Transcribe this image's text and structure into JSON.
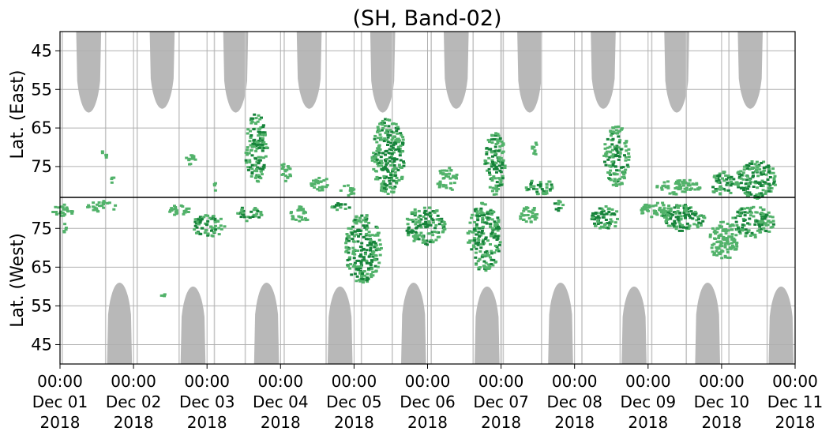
{
  "chart_data": {
    "type": "heatmap",
    "title": "(SH, Band-02)",
    "panels": [
      {
        "name": "east",
        "ylabel": "Lat. (East)",
        "yticks": [
          "45",
          "55",
          "65",
          "75"
        ],
        "ytick_values": [
          45,
          55,
          65,
          75
        ],
        "ylim": [
          40,
          83
        ]
      },
      {
        "name": "west",
        "ylabel": "Lat. (West)",
        "yticks": [
          "75",
          "65",
          "55",
          "45"
        ],
        "ytick_values": [
          75,
          65,
          55,
          45
        ],
        "ylim": [
          83,
          40
        ]
      }
    ],
    "x_ticks": [
      [
        "00:00",
        "Dec 01",
        "2018"
      ],
      [
        "00:00",
        "Dec 02",
        "2018"
      ],
      [
        "00:00",
        "Dec 03",
        "2018"
      ],
      [
        "00:00",
        "Dec 04",
        "2018"
      ],
      [
        "00:00",
        "Dec 05",
        "2018"
      ],
      [
        "00:00",
        "Dec 06",
        "2018"
      ],
      [
        "00:00",
        "Dec 07",
        "2018"
      ],
      [
        "00:00",
        "Dec 08",
        "2018"
      ],
      [
        "00:00",
        "Dec 09",
        "2018"
      ],
      [
        "00:00",
        "Dec 10",
        "2018"
      ],
      [
        "00:00",
        "Dec 11",
        "2018"
      ]
    ],
    "x_range": [
      "2018-12-01 00:00",
      "2018-12-11 00:00"
    ],
    "grid": true,
    "colors": {
      "daylight": "#b8b8b8",
      "echo_light": "#52b26a",
      "echo_dark": "#16833a",
      "grid": "#b0b0b0",
      "axis": "#000000"
    },
    "daylight_east": [
      {
        "day_start": 0.22,
        "day_end": 0.56,
        "min_lat": 61
      },
      {
        "day_start": 1.22,
        "day_end": 1.56,
        "min_lat": 60
      },
      {
        "day_start": 2.22,
        "day_end": 2.56,
        "min_lat": 61
      },
      {
        "day_start": 3.22,
        "day_end": 3.56,
        "min_lat": 60
      },
      {
        "day_start": 4.22,
        "day_end": 4.56,
        "min_lat": 61
      },
      {
        "day_start": 5.22,
        "day_end": 5.56,
        "min_lat": 60
      },
      {
        "day_start": 6.22,
        "day_end": 6.56,
        "min_lat": 61
      },
      {
        "day_start": 7.22,
        "day_end": 7.56,
        "min_lat": 60
      },
      {
        "day_start": 8.22,
        "day_end": 8.56,
        "min_lat": 61
      },
      {
        "day_start": 9.22,
        "day_end": 9.56,
        "min_lat": 60
      }
    ],
    "daylight_west": [
      {
        "day_start": 0.64,
        "day_end": 0.98,
        "min_lat": 61
      },
      {
        "day_start": 1.64,
        "day_end": 1.98,
        "min_lat": 60
      },
      {
        "day_start": 2.64,
        "day_end": 2.98,
        "min_lat": 61
      },
      {
        "day_start": 3.64,
        "day_end": 3.98,
        "min_lat": 60
      },
      {
        "day_start": 4.64,
        "day_end": 4.98,
        "min_lat": 61
      },
      {
        "day_start": 5.64,
        "day_end": 5.98,
        "min_lat": 60
      },
      {
        "day_start": 6.64,
        "day_end": 6.98,
        "min_lat": 61
      },
      {
        "day_start": 7.64,
        "day_end": 7.98,
        "min_lat": 60
      },
      {
        "day_start": 8.64,
        "day_end": 8.98,
        "min_lat": 61
      },
      {
        "day_start": 9.64,
        "day_end": 9.98,
        "min_lat": 60
      }
    ],
    "data_gaps": [
      0.03,
      0.62,
      1.05,
      1.62,
      2.1,
      2.52,
      3.05,
      3.62,
      4.1,
      4.52,
      5.05,
      5.62,
      6.0,
      6.03,
      6.55,
      7.1,
      7.62,
      8.05,
      8.52,
      9.1,
      9.62
    ],
    "echo_clusters": [
      {
        "panel": "east",
        "day": 0.55,
        "lat": 71,
        "w": 0.01,
        "h": 1,
        "level": 1
      },
      {
        "panel": "east",
        "day": 0.6,
        "lat": 72,
        "w": 0.01,
        "h": 1,
        "level": 1
      },
      {
        "panel": "east",
        "day": 0.7,
        "lat": 78,
        "w": 0.05,
        "h": 3,
        "level": 1
      },
      {
        "panel": "east",
        "day": 1.75,
        "lat": 73,
        "w": 0.15,
        "h": 3,
        "level": 1
      },
      {
        "panel": "east",
        "day": 2.1,
        "lat": 80,
        "w": 0.08,
        "h": 2,
        "level": 1
      },
      {
        "panel": "east",
        "day": 2.65,
        "lat": 70,
        "w": 0.3,
        "h": 18,
        "level": 2
      },
      {
        "panel": "east",
        "day": 3.05,
        "lat": 76,
        "w": 0.15,
        "h": 5,
        "level": 1
      },
      {
        "panel": "east",
        "day": 3.5,
        "lat": 79,
        "w": 0.25,
        "h": 4,
        "level": 1
      },
      {
        "panel": "east",
        "day": 3.9,
        "lat": 81,
        "w": 0.2,
        "h": 3,
        "level": 1
      },
      {
        "panel": "east",
        "day": 4.45,
        "lat": 72,
        "w": 0.45,
        "h": 20,
        "level": 2
      },
      {
        "panel": "east",
        "day": 5.25,
        "lat": 78,
        "w": 0.3,
        "h": 6,
        "level": 1
      },
      {
        "panel": "east",
        "day": 5.9,
        "lat": 74,
        "w": 0.3,
        "h": 16,
        "level": 2
      },
      {
        "panel": "east",
        "day": 6.45,
        "lat": 70,
        "w": 0.1,
        "h": 3,
        "level": 1
      },
      {
        "panel": "east",
        "day": 6.5,
        "lat": 80,
        "w": 0.4,
        "h": 4,
        "level": 2
      },
      {
        "panel": "east",
        "day": 7.55,
        "lat": 72,
        "w": 0.35,
        "h": 16,
        "level": 2
      },
      {
        "panel": "east",
        "day": 8.4,
        "lat": 80,
        "w": 0.6,
        "h": 4,
        "level": 1
      },
      {
        "panel": "east",
        "day": 9.0,
        "lat": 79,
        "w": 0.4,
        "h": 6,
        "level": 2
      },
      {
        "panel": "east",
        "day": 9.45,
        "lat": 78,
        "w": 0.55,
        "h": 10,
        "level": 2
      },
      {
        "panel": "west",
        "day": 0.02,
        "lat": 80,
        "w": 0.3,
        "h": 3,
        "level": 1
      },
      {
        "panel": "west",
        "day": 0.05,
        "lat": 75,
        "w": 0.03,
        "h": 4,
        "level": 1
      },
      {
        "panel": "west",
        "day": 0.55,
        "lat": 81,
        "w": 0.4,
        "h": 3,
        "level": 1
      },
      {
        "panel": "west",
        "day": 1.6,
        "lat": 80,
        "w": 0.3,
        "h": 3,
        "level": 1
      },
      {
        "panel": "west",
        "day": 2.0,
        "lat": 76,
        "w": 0.45,
        "h": 6,
        "level": 2
      },
      {
        "panel": "west",
        "day": 2.55,
        "lat": 79,
        "w": 0.35,
        "h": 4,
        "level": 2
      },
      {
        "panel": "west",
        "day": 3.25,
        "lat": 79,
        "w": 0.3,
        "h": 4,
        "level": 1
      },
      {
        "panel": "west",
        "day": 3.8,
        "lat": 81,
        "w": 0.3,
        "h": 2,
        "level": 2
      },
      {
        "panel": "west",
        "day": 4.1,
        "lat": 70,
        "w": 0.5,
        "h": 18,
        "level": 2
      },
      {
        "panel": "west",
        "day": 4.95,
        "lat": 76,
        "w": 0.55,
        "h": 10,
        "level": 2
      },
      {
        "panel": "west",
        "day": 5.75,
        "lat": 73,
        "w": 0.45,
        "h": 18,
        "level": 2
      },
      {
        "panel": "west",
        "day": 6.35,
        "lat": 79,
        "w": 0.25,
        "h": 5,
        "level": 1
      },
      {
        "panel": "west",
        "day": 6.75,
        "lat": 81,
        "w": 0.15,
        "h": 3,
        "level": 2
      },
      {
        "panel": "west",
        "day": 7.4,
        "lat": 78,
        "w": 0.4,
        "h": 6,
        "level": 2
      },
      {
        "panel": "west",
        "day": 8.1,
        "lat": 80,
        "w": 0.45,
        "h": 4,
        "level": 1
      },
      {
        "panel": "west",
        "day": 8.45,
        "lat": 78,
        "w": 0.6,
        "h": 7,
        "level": 2
      },
      {
        "panel": "west",
        "day": 9.0,
        "lat": 72,
        "w": 0.4,
        "h": 10,
        "level": 1
      },
      {
        "panel": "west",
        "day": 9.4,
        "lat": 77,
        "w": 0.6,
        "h": 8,
        "level": 2
      },
      {
        "panel": "west",
        "day": 1.4,
        "lat": 58,
        "w": 0.08,
        "h": 1,
        "level": 1
      }
    ]
  }
}
